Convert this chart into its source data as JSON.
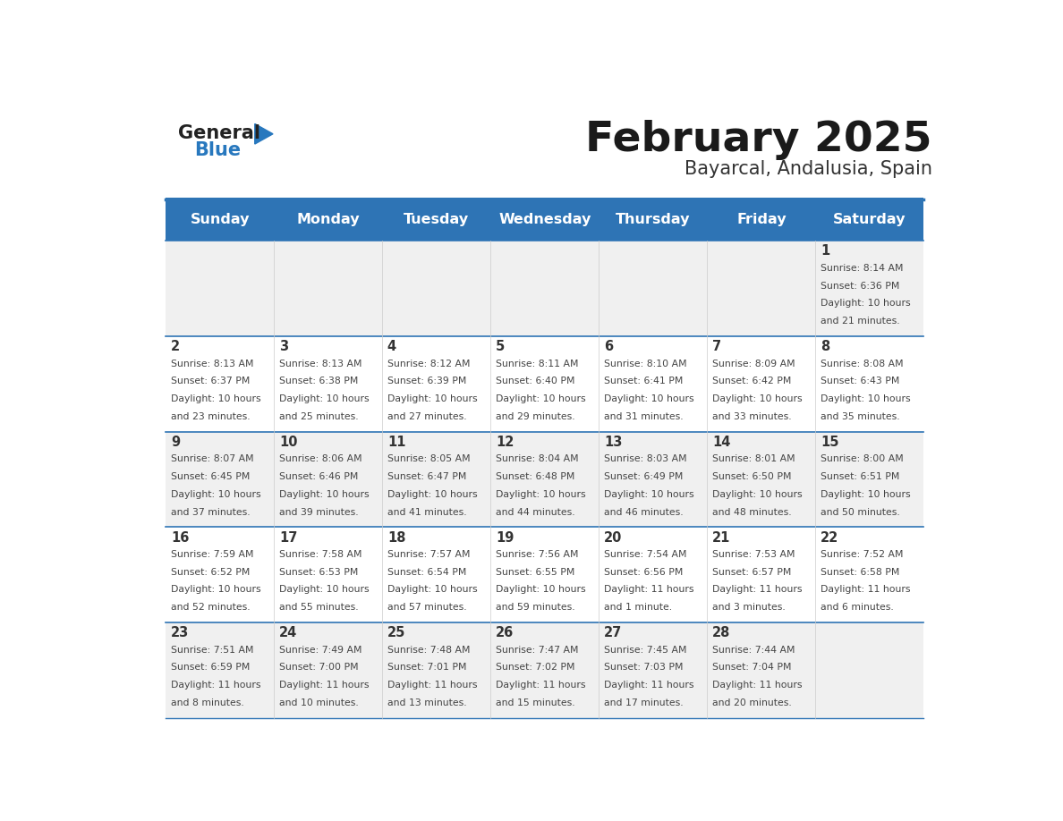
{
  "title": "February 2025",
  "subtitle": "Bayarcal, Andalusia, Spain",
  "header_bg": "#2E74B5",
  "header_text_color": "#FFFFFF",
  "day_names": [
    "Sunday",
    "Monday",
    "Tuesday",
    "Wednesday",
    "Thursday",
    "Friday",
    "Saturday"
  ],
  "cell_bg_odd": "#F0F0F0",
  "cell_bg_even": "#FFFFFF",
  "divider_color": "#2E74B5",
  "text_color": "#444444",
  "day_num_color": "#333333",
  "logo_general_color": "#222222",
  "logo_blue_color": "#2878BE",
  "calendar_data": [
    {
      "day": 1,
      "col": 6,
      "row": 0,
      "sunrise": "8:14 AM",
      "sunset": "6:36 PM",
      "daylight": "10 hours",
      "daylight2": "and 21 minutes."
    },
    {
      "day": 2,
      "col": 0,
      "row": 1,
      "sunrise": "8:13 AM",
      "sunset": "6:37 PM",
      "daylight": "10 hours",
      "daylight2": "and 23 minutes."
    },
    {
      "day": 3,
      "col": 1,
      "row": 1,
      "sunrise": "8:13 AM",
      "sunset": "6:38 PM",
      "daylight": "10 hours",
      "daylight2": "and 25 minutes."
    },
    {
      "day": 4,
      "col": 2,
      "row": 1,
      "sunrise": "8:12 AM",
      "sunset": "6:39 PM",
      "daylight": "10 hours",
      "daylight2": "and 27 minutes."
    },
    {
      "day": 5,
      "col": 3,
      "row": 1,
      "sunrise": "8:11 AM",
      "sunset": "6:40 PM",
      "daylight": "10 hours",
      "daylight2": "and 29 minutes."
    },
    {
      "day": 6,
      "col": 4,
      "row": 1,
      "sunrise": "8:10 AM",
      "sunset": "6:41 PM",
      "daylight": "10 hours",
      "daylight2": "and 31 minutes."
    },
    {
      "day": 7,
      "col": 5,
      "row": 1,
      "sunrise": "8:09 AM",
      "sunset": "6:42 PM",
      "daylight": "10 hours",
      "daylight2": "and 33 minutes."
    },
    {
      "day": 8,
      "col": 6,
      "row": 1,
      "sunrise": "8:08 AM",
      "sunset": "6:43 PM",
      "daylight": "10 hours",
      "daylight2": "and 35 minutes."
    },
    {
      "day": 9,
      "col": 0,
      "row": 2,
      "sunrise": "8:07 AM",
      "sunset": "6:45 PM",
      "daylight": "10 hours",
      "daylight2": "and 37 minutes."
    },
    {
      "day": 10,
      "col": 1,
      "row": 2,
      "sunrise": "8:06 AM",
      "sunset": "6:46 PM",
      "daylight": "10 hours",
      "daylight2": "and 39 minutes."
    },
    {
      "day": 11,
      "col": 2,
      "row": 2,
      "sunrise": "8:05 AM",
      "sunset": "6:47 PM",
      "daylight": "10 hours",
      "daylight2": "and 41 minutes."
    },
    {
      "day": 12,
      "col": 3,
      "row": 2,
      "sunrise": "8:04 AM",
      "sunset": "6:48 PM",
      "daylight": "10 hours",
      "daylight2": "and 44 minutes."
    },
    {
      "day": 13,
      "col": 4,
      "row": 2,
      "sunrise": "8:03 AM",
      "sunset": "6:49 PM",
      "daylight": "10 hours",
      "daylight2": "and 46 minutes."
    },
    {
      "day": 14,
      "col": 5,
      "row": 2,
      "sunrise": "8:01 AM",
      "sunset": "6:50 PM",
      "daylight": "10 hours",
      "daylight2": "and 48 minutes."
    },
    {
      "day": 15,
      "col": 6,
      "row": 2,
      "sunrise": "8:00 AM",
      "sunset": "6:51 PM",
      "daylight": "10 hours",
      "daylight2": "and 50 minutes."
    },
    {
      "day": 16,
      "col": 0,
      "row": 3,
      "sunrise": "7:59 AM",
      "sunset": "6:52 PM",
      "daylight": "10 hours",
      "daylight2": "and 52 minutes."
    },
    {
      "day": 17,
      "col": 1,
      "row": 3,
      "sunrise": "7:58 AM",
      "sunset": "6:53 PM",
      "daylight": "10 hours",
      "daylight2": "and 55 minutes."
    },
    {
      "day": 18,
      "col": 2,
      "row": 3,
      "sunrise": "7:57 AM",
      "sunset": "6:54 PM",
      "daylight": "10 hours",
      "daylight2": "and 57 minutes."
    },
    {
      "day": 19,
      "col": 3,
      "row": 3,
      "sunrise": "7:56 AM",
      "sunset": "6:55 PM",
      "daylight": "10 hours",
      "daylight2": "and 59 minutes."
    },
    {
      "day": 20,
      "col": 4,
      "row": 3,
      "sunrise": "7:54 AM",
      "sunset": "6:56 PM",
      "daylight": "11 hours",
      "daylight2": "and 1 minute."
    },
    {
      "day": 21,
      "col": 5,
      "row": 3,
      "sunrise": "7:53 AM",
      "sunset": "6:57 PM",
      "daylight": "11 hours",
      "daylight2": "and 3 minutes."
    },
    {
      "day": 22,
      "col": 6,
      "row": 3,
      "sunrise": "7:52 AM",
      "sunset": "6:58 PM",
      "daylight": "11 hours",
      "daylight2": "and 6 minutes."
    },
    {
      "day": 23,
      "col": 0,
      "row": 4,
      "sunrise": "7:51 AM",
      "sunset": "6:59 PM",
      "daylight": "11 hours",
      "daylight2": "and 8 minutes."
    },
    {
      "day": 24,
      "col": 1,
      "row": 4,
      "sunrise": "7:49 AM",
      "sunset": "7:00 PM",
      "daylight": "11 hours",
      "daylight2": "and 10 minutes."
    },
    {
      "day": 25,
      "col": 2,
      "row": 4,
      "sunrise": "7:48 AM",
      "sunset": "7:01 PM",
      "daylight": "11 hours",
      "daylight2": "and 13 minutes."
    },
    {
      "day": 26,
      "col": 3,
      "row": 4,
      "sunrise": "7:47 AM",
      "sunset": "7:02 PM",
      "daylight": "11 hours",
      "daylight2": "and 15 minutes."
    },
    {
      "day": 27,
      "col": 4,
      "row": 4,
      "sunrise": "7:45 AM",
      "sunset": "7:03 PM",
      "daylight": "11 hours",
      "daylight2": "and 17 minutes."
    },
    {
      "day": 28,
      "col": 5,
      "row": 4,
      "sunrise": "7:44 AM",
      "sunset": "7:04 PM",
      "daylight": "11 hours",
      "daylight2": "and 20 minutes."
    }
  ]
}
